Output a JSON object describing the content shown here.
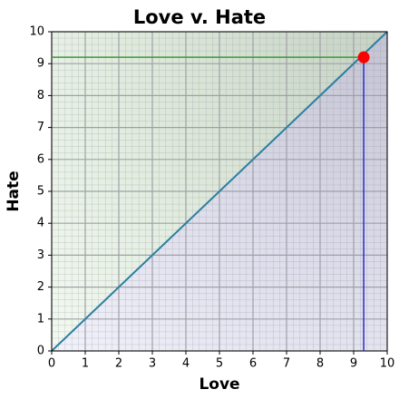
{
  "chart_data": {
    "type": "scatter",
    "title": "Love v. Hate",
    "x_label": "Love",
    "y_label": "Hate",
    "series": [
      {
        "color": "#ff0000",
        "x": [
          9.3
        ],
        "values": [
          9.2
        ]
      }
    ],
    "xlim": [
      0,
      10
    ],
    "ylim": [
      0,
      10
    ],
    "xticks": [
      0,
      1,
      2,
      3,
      4,
      5,
      6,
      7,
      8,
      9,
      10
    ],
    "yticks": [
      0,
      1,
      2,
      3,
      4,
      5,
      6,
      7,
      8,
      9,
      10
    ],
    "grid": true
  }
}
